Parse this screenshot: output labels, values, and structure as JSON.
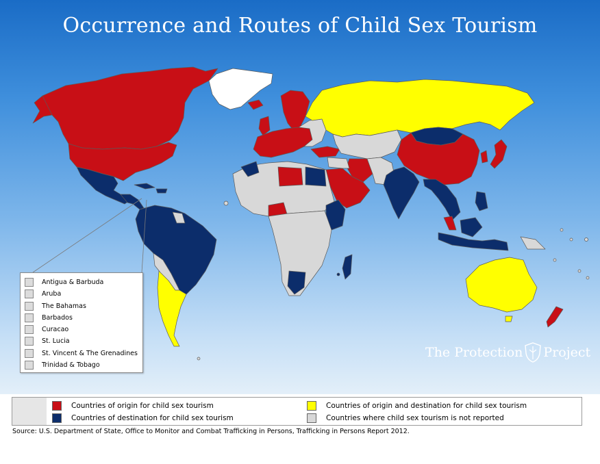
{
  "title": "Occurrence and Routes of Child Sex Tourism",
  "colors": {
    "origin": "#c80f16",
    "destination": "#0c2d6b",
    "both": "#ffff00",
    "not_reported": "#d8d8d8",
    "greenland": "#ffffff"
  },
  "small_countries": [
    "Antigua & Barbuda",
    "Aruba",
    "The Bahamas",
    "Barbados",
    "Curacao",
    "St. Lucia",
    "St. Vincent & The Grenadines",
    "Trinidad & Tobago"
  ],
  "legend": {
    "origin": "Countries of origin for child sex tourism",
    "destination": "Countries of destination for child sex tourism",
    "both": "Countries of origin and destination for child sex tourism",
    "not_reported": "Countries where child sex tourism is not reported"
  },
  "watermark": {
    "left": "The Protection",
    "right": "Project"
  },
  "source": "Source: U.S. Department of State, Office to Monitor and Combat Trafficking in Persons, Trafficking in Persons Report 2012."
}
